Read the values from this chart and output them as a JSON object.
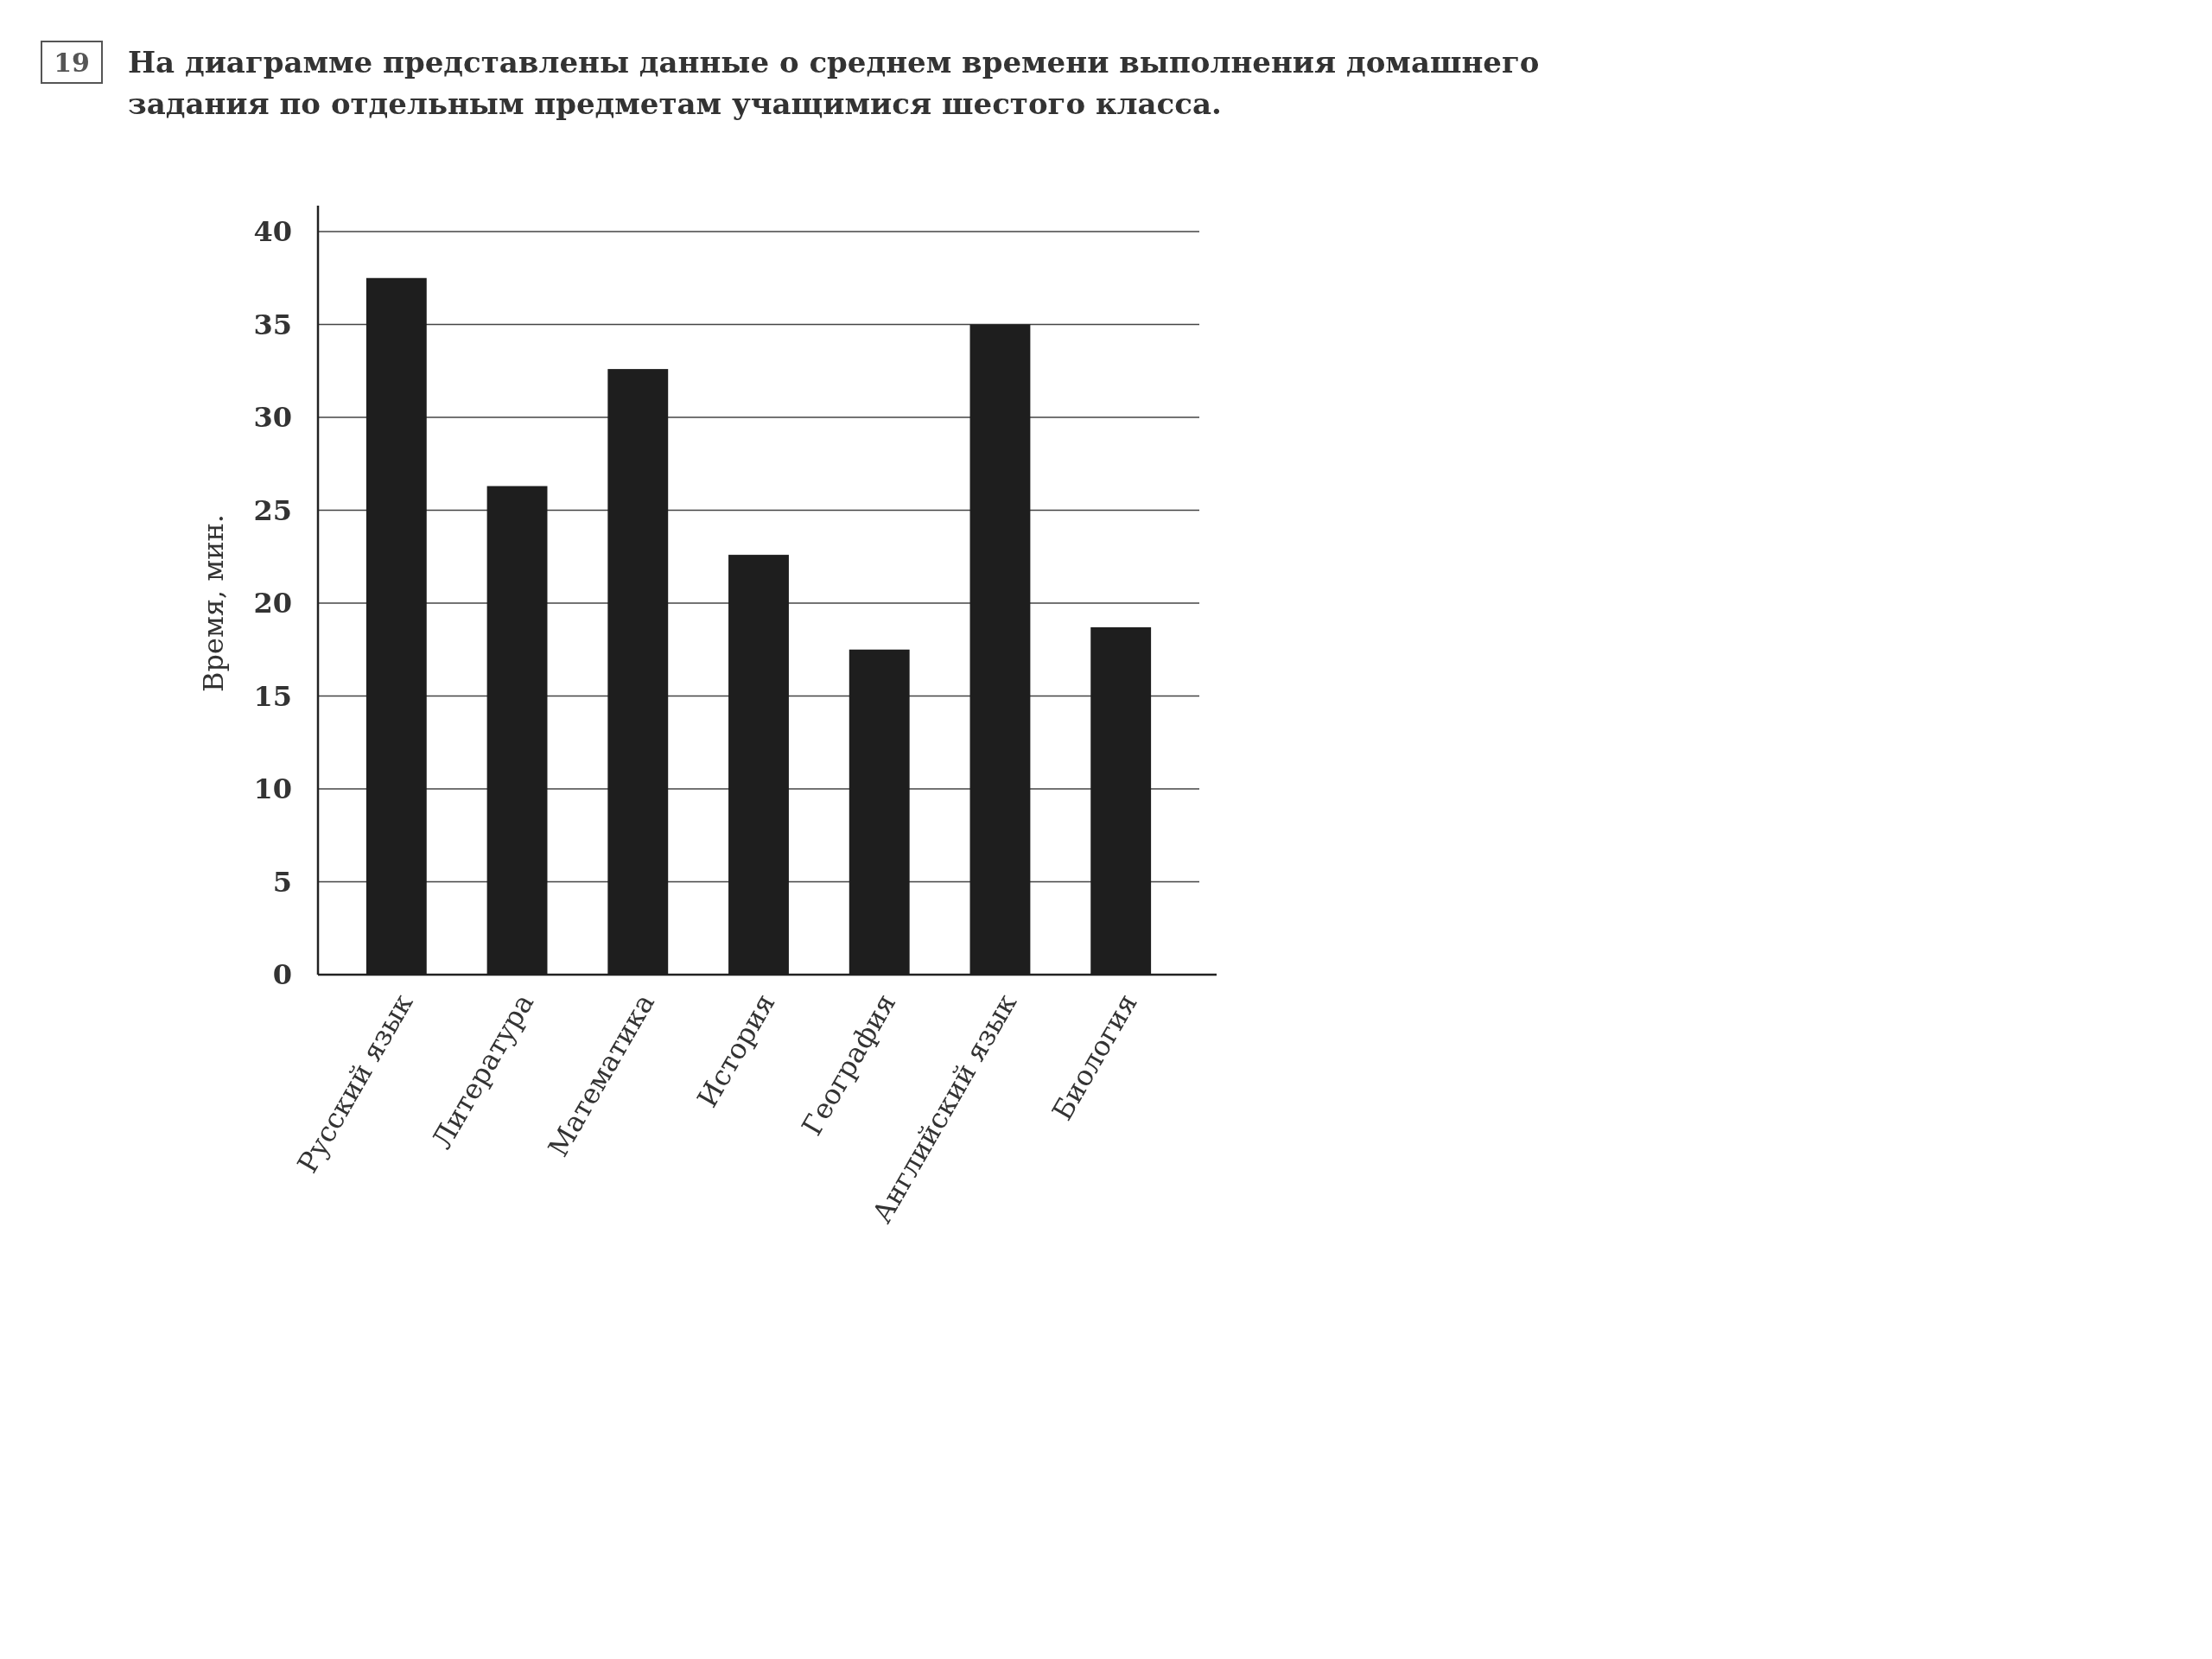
{
  "chart_data": {
    "type": "bar",
    "title": "На диаграмме представлены данные о среднем времени выполнения домашнего задания по отдельным предметам учащимися шестого класса.",
    "annotations": [
      "19"
    ],
    "ylabel": "Время, мин.",
    "categories": [
      "Русский язык",
      "Литература",
      "Математика",
      "История",
      "География",
      "Английский язык",
      "Биология"
    ],
    "values": [
      37.5,
      26.3,
      32.6,
      22.6,
      17.5,
      35,
      18.7
    ],
    "color": "#1e1e1e",
    "ylim": [
      0,
      40
    ],
    "yticks": [
      0,
      5,
      10,
      15,
      20,
      25,
      30,
      35,
      40
    ],
    "grid": "y"
  }
}
